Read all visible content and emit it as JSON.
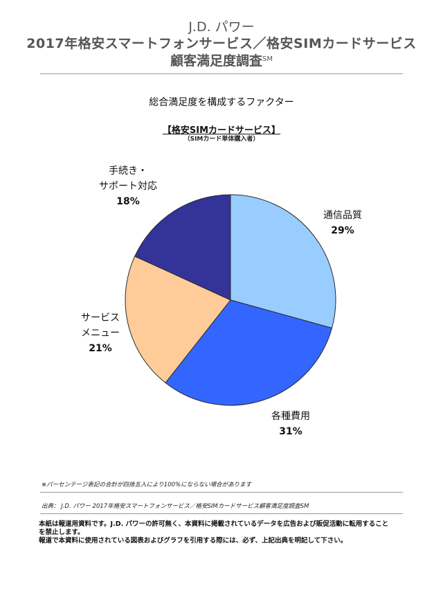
{
  "header": {
    "line1": "J.D. パワー",
    "line2": "2017年格安スマートフォンサービス／格安SIMカードサービス",
    "line3": "顧客満足度調査",
    "line3_sup": "SM"
  },
  "subtitle": "総合満足度を構成するファクター",
  "segment_label": "【格安SIMカードサービス】",
  "base_label": "（SIMカード単体購入者）",
  "chart_data": {
    "type": "pie",
    "title": "総合満足度を構成するファクター",
    "slices": [
      {
        "label_lines": [
          "通信品質"
        ],
        "label": "通信品質",
        "value": 29,
        "value_label": "29%",
        "color": "#99ccff"
      },
      {
        "label_lines": [
          "各種費用"
        ],
        "label": "各種費用",
        "value": 31,
        "value_label": "31%",
        "color": "#3366ff"
      },
      {
        "label_lines": [
          "サービス",
          "メニュー"
        ],
        "label": "サービスメニュー",
        "value": 21,
        "value_label": "21%",
        "color": "#ffcc99"
      },
      {
        "label_lines": [
          "手続き・",
          "サポート対応"
        ],
        "label": "手続き・サポート対応",
        "value": 18,
        "value_label": "18%",
        "color": "#333399"
      }
    ],
    "start": "12 o'clock",
    "direction": "clockwise",
    "legend": "none"
  },
  "footnote": "※パーセンテージ表記の合計が四捨五入により100%にならない場合があります",
  "source": "出典： J.D. パワー 2017年格安スマートフォンサービス／格安SIMカードサービス顧客満足度調査SM",
  "disclaimer": {
    "line1": "本紙は報道用資料です。J.D. パワーの許可無く、本資料に掲載されているデータを広告および販促活動に転用すること",
    "line2": "を禁止します。",
    "line3": "報道で本資料に使用されている図表およびグラフを引用する際には、必ず、上記出典を明記して下さい。"
  }
}
